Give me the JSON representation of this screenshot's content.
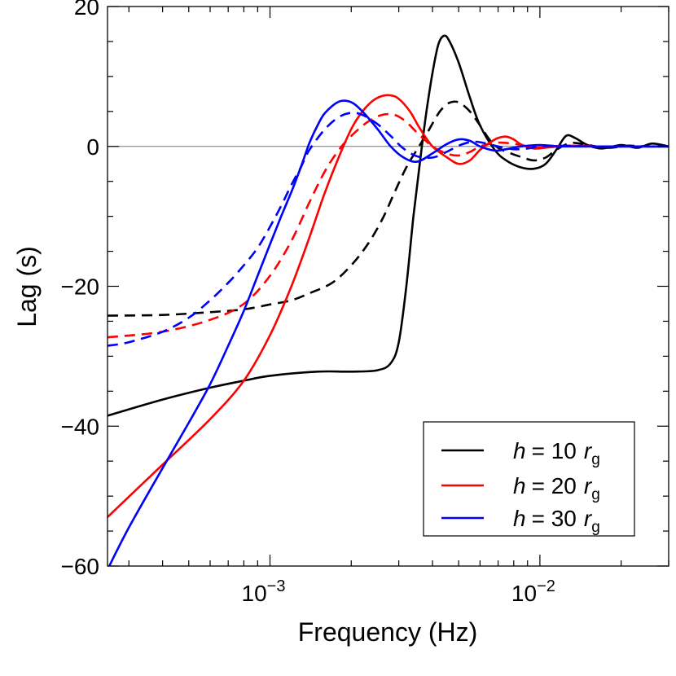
{
  "chart_data": {
    "type": "line",
    "title": "",
    "xlabel": "Frequency (Hz)",
    "ylabel": "Lag (s)",
    "xscale": "log",
    "xlim": [
      0.00025,
      0.03
    ],
    "ylim": [
      -60,
      20
    ],
    "grid": false,
    "legend_position": "bottom-right",
    "x_tick_labels": [
      {
        "value": 0.001,
        "base": "10",
        "exp": "−3"
      },
      {
        "value": 0.01,
        "base": "10",
        "exp": "−2"
      }
    ],
    "y_ticks": [
      {
        "value": 20,
        "label": "20"
      },
      {
        "value": 0,
        "label": "0"
      },
      {
        "value": -20,
        "label": "−20"
      },
      {
        "value": -40,
        "label": "−40"
      },
      {
        "value": -60,
        "label": "−60"
      }
    ],
    "legend": [
      {
        "series": "h10_solid",
        "h": "h",
        "eq": "= 10",
        "r": "r",
        "sub": "g",
        "color": "#000000"
      },
      {
        "series": "h20_solid",
        "h": "h",
        "eq": "= 20",
        "r": "r",
        "sub": "g",
        "color": "#ff0000"
      },
      {
        "series": "h30_solid",
        "h": "h",
        "eq": "= 30",
        "r": "r",
        "sub": "g",
        "color": "#0000ff"
      }
    ],
    "series": [
      {
        "name": "h10_solid",
        "label": "h = 10 rg",
        "color": "#000000",
        "dash": "solid",
        "x": [
          0.00025,
          0.0004,
          0.0006,
          0.0008,
          0.001,
          0.0015,
          0.002,
          0.0025,
          0.0028,
          0.003,
          0.0032,
          0.0034,
          0.0036,
          0.0038,
          0.004,
          0.0042,
          0.0044,
          0.0046,
          0.005,
          0.0055,
          0.006,
          0.0068,
          0.0075,
          0.0085,
          0.0095,
          0.0105,
          0.0115,
          0.0125,
          0.0135,
          0.015,
          0.017,
          0.02,
          0.023,
          0.026,
          0.03
        ],
        "y": [
          -38.5,
          -36.2,
          -34.5,
          -33.5,
          -32.8,
          -32.2,
          -32.2,
          -32.0,
          -31.0,
          -28.0,
          -20.0,
          -10.0,
          -2.0,
          5.0,
          10.5,
          14.5,
          15.8,
          15.2,
          12.0,
          7.0,
          3.0,
          -0.5,
          -2.0,
          -3.0,
          -3.2,
          -2.5,
          -0.5,
          1.5,
          1.2,
          0.2,
          -0.3,
          0.2,
          -0.2,
          0.4,
          0.0
        ]
      },
      {
        "name": "h10_dashed",
        "label": "",
        "color": "#000000",
        "dash": "dashed",
        "x": [
          0.00025,
          0.0004,
          0.0006,
          0.0008,
          0.001,
          0.0012,
          0.0014,
          0.0017,
          0.002,
          0.0023,
          0.0026,
          0.0029,
          0.0032,
          0.0035,
          0.0037,
          0.0039,
          0.0041,
          0.0043,
          0.0046,
          0.005,
          0.0055,
          0.006,
          0.0065,
          0.007,
          0.0078,
          0.0085,
          0.0095,
          0.0105,
          0.0115,
          0.013,
          0.015,
          0.018,
          0.021,
          0.025,
          0.03
        ],
        "y": [
          -24.2,
          -24.1,
          -23.7,
          -23.3,
          -22.6,
          -22.0,
          -21.0,
          -19.5,
          -17.0,
          -14.0,
          -10.5,
          -6.5,
          -3.0,
          -0.5,
          1.0,
          2.5,
          4.0,
          5.2,
          6.2,
          6.3,
          5.0,
          3.0,
          1.0,
          -0.2,
          -1.0,
          -1.5,
          -2.0,
          -1.6,
          -0.5,
          0.5,
          0.2,
          -0.2,
          0.1,
          0.0,
          0.0
        ]
      },
      {
        "name": "h20_solid",
        "label": "h = 20 rg",
        "color": "#ff0000",
        "dash": "solid",
        "x": [
          0.00025,
          0.0004,
          0.0006,
          0.0008,
          0.001,
          0.0012,
          0.0014,
          0.0016,
          0.0018,
          0.002,
          0.0022,
          0.0024,
          0.0026,
          0.0028,
          0.003,
          0.0033,
          0.0036,
          0.004,
          0.0045,
          0.005,
          0.0055,
          0.006,
          0.0065,
          0.007,
          0.0075,
          0.008,
          0.0085,
          0.0095,
          0.011,
          0.013,
          0.016,
          0.02,
          0.025,
          0.03
        ],
        "y": [
          -53.0,
          -45.5,
          -39.0,
          -33.5,
          -27.0,
          -20.0,
          -13.0,
          -6.5,
          -1.5,
          2.5,
          5.0,
          6.5,
          7.2,
          7.3,
          6.8,
          5.0,
          2.5,
          0.0,
          -1.5,
          -2.5,
          -2.0,
          -0.5,
          0.5,
          1.2,
          1.4,
          1.0,
          0.3,
          -0.3,
          -0.1,
          0.1,
          0.0,
          0.0,
          0.0,
          0.0
        ]
      },
      {
        "name": "h20_dashed",
        "label": "",
        "color": "#ff0000",
        "dash": "dashed",
        "x": [
          0.00025,
          0.0004,
          0.0006,
          0.0008,
          0.001,
          0.0012,
          0.0014,
          0.0016,
          0.0018,
          0.002,
          0.0023,
          0.0026,
          0.0029,
          0.0032,
          0.0035,
          0.004,
          0.0045,
          0.005,
          0.0055,
          0.006,
          0.0068,
          0.0075,
          0.0085,
          0.0095,
          0.011,
          0.013,
          0.016,
          0.02,
          0.025,
          0.03
        ],
        "y": [
          -27.3,
          -26.5,
          -24.8,
          -22.5,
          -18.5,
          -13.5,
          -8.0,
          -3.5,
          -0.5,
          1.5,
          3.5,
          4.5,
          4.5,
          3.5,
          2.0,
          0.0,
          -1.0,
          -1.3,
          -0.8,
          0.0,
          0.5,
          0.5,
          0.2,
          -0.2,
          0.0,
          0.1,
          0.0,
          0.0,
          0.0,
          0.0
        ]
      },
      {
        "name": "h30_solid",
        "label": "h = 30 rg",
        "color": "#0000ff",
        "dash": "solid",
        "x": [
          0.00025,
          0.0003,
          0.0004,
          0.0005,
          0.0006,
          0.0007,
          0.0008,
          0.0009,
          0.001,
          0.0011,
          0.0012,
          0.0013,
          0.0014,
          0.0015,
          0.0016,
          0.0018,
          0.002,
          0.0022,
          0.0025,
          0.0028,
          0.0031,
          0.0035,
          0.004,
          0.0045,
          0.005,
          0.0055,
          0.006,
          0.0068,
          0.0075,
          0.0085,
          0.01,
          0.012,
          0.015,
          0.02,
          0.025,
          0.03
        ],
        "y": [
          -60.5,
          -54.5,
          -46.0,
          -39.5,
          -34.0,
          -28.5,
          -23.5,
          -18.5,
          -14.0,
          -10.0,
          -6.5,
          -3.0,
          0.5,
          3.0,
          4.8,
          6.4,
          6.3,
          5.0,
          2.5,
          0.0,
          -1.5,
          -2.2,
          -1.0,
          0.3,
          1.0,
          0.8,
          0.0,
          -0.6,
          -0.4,
          0.0,
          0.2,
          0.0,
          0.0,
          0.0,
          0.0,
          0.0
        ]
      },
      {
        "name": "h30_dashed",
        "label": "",
        "color": "#0000ff",
        "dash": "dashed",
        "x": [
          0.00025,
          0.0003,
          0.0004,
          0.0005,
          0.0006,
          0.0007,
          0.0008,
          0.0009,
          0.001,
          0.0011,
          0.0012,
          0.0013,
          0.0014,
          0.0016,
          0.0018,
          0.002,
          0.0022,
          0.0025,
          0.0028,
          0.0031,
          0.0035,
          0.004,
          0.0045,
          0.005,
          0.0055,
          0.006,
          0.007,
          0.008,
          0.009,
          0.01,
          0.012,
          0.015,
          0.02,
          0.025,
          0.03
        ],
        "y": [
          -28.5,
          -28.0,
          -26.5,
          -24.5,
          -22.0,
          -19.5,
          -17.0,
          -14.5,
          -11.5,
          -8.5,
          -5.5,
          -3.0,
          -0.5,
          2.5,
          4.2,
          4.8,
          4.5,
          3.2,
          1.5,
          -0.2,
          -1.4,
          -1.6,
          -0.8,
          0.1,
          0.6,
          0.6,
          0.0,
          -0.4,
          -0.3,
          0.0,
          0.1,
          0.0,
          0.0,
          0.0,
          0.0
        ]
      }
    ]
  }
}
